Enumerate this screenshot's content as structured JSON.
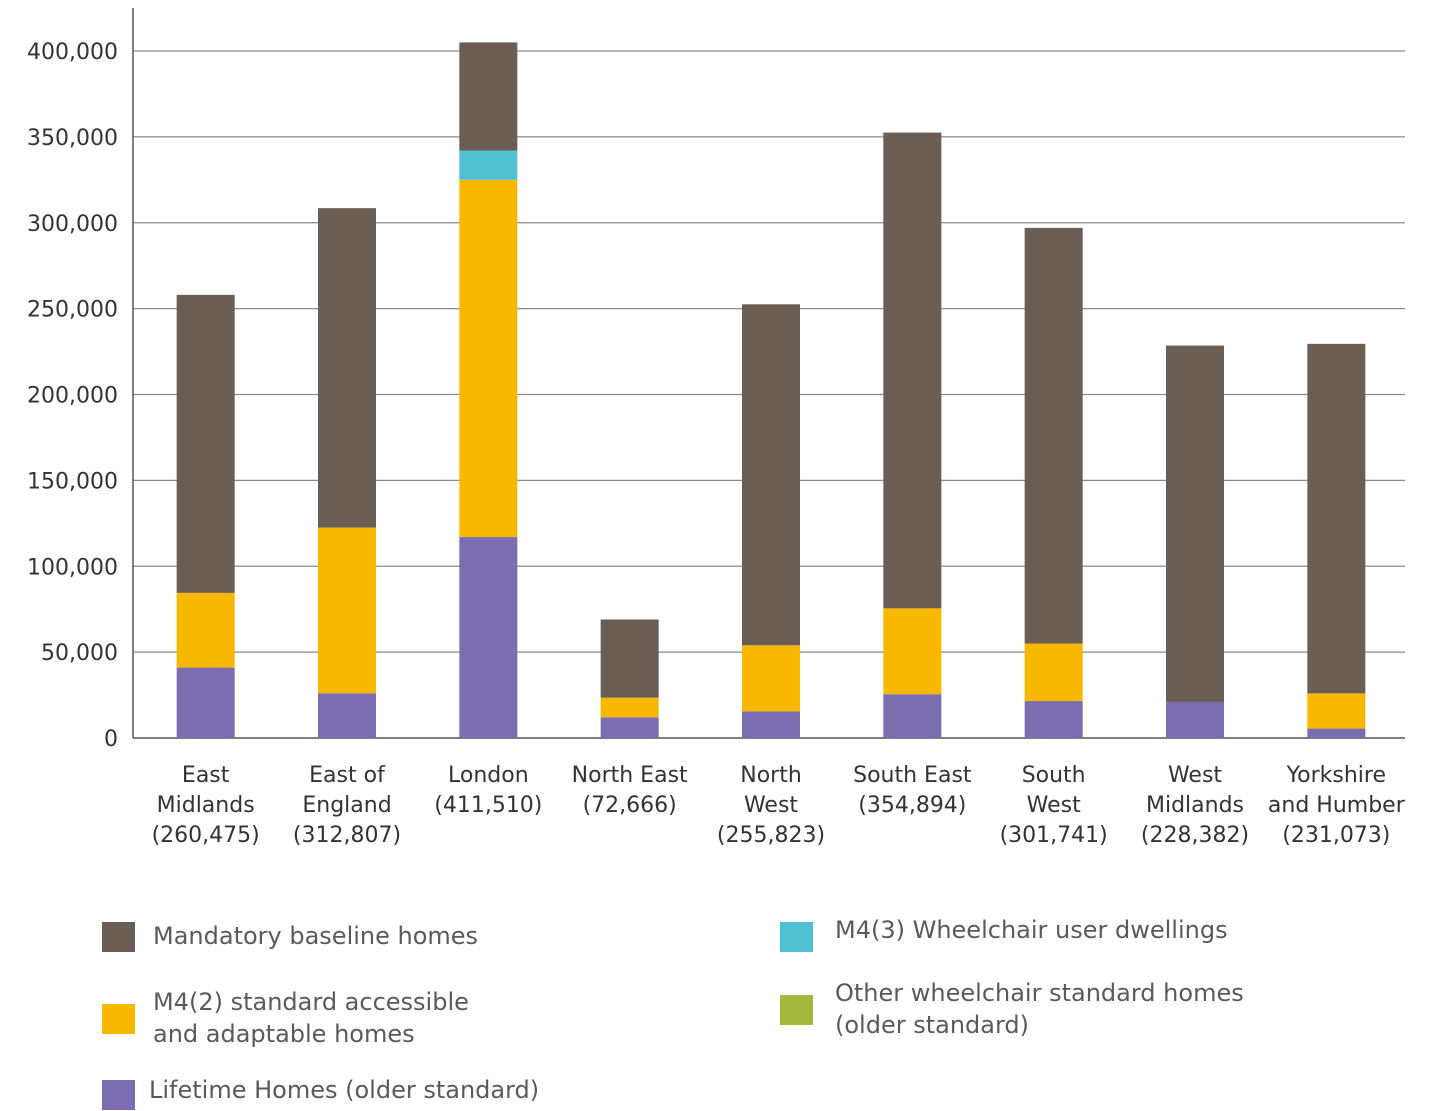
{
  "chart_data": {
    "type": "bar",
    "stacked": true,
    "categories": [
      "East\nMidlands\n(260,475)",
      "East of\nEngland\n(312,807)",
      "London\n(411,510)",
      "North East\n(72,666)",
      "North\nWest\n(255,823)",
      "South East\n(354,894)",
      "South\nWest\n(301,741)",
      "West\nMidlands\n(228,382)",
      "Yorkshire\nand Humber\n(231,073)"
    ],
    "series": [
      {
        "name": "Lifetime Homes (older standard)",
        "color": "#7a6db0",
        "values": [
          41000,
          26000,
          117000,
          12000,
          15500,
          25500,
          21500,
          21000,
          5500
        ]
      },
      {
        "name": "M4(2) standard accessible\nand adaptable homes",
        "color": "#f9b800",
        "values": [
          43500,
          96500,
          208000,
          11500,
          38500,
          50000,
          33500,
          0,
          20500
        ]
      },
      {
        "name": "Other wheelchair standard homes\n(older standard)",
        "color": "#a5b83e",
        "values": [
          0,
          0,
          0,
          0,
          0,
          0,
          0,
          0,
          0
        ]
      },
      {
        "name": "M4(3) Wheelchair user dwellings",
        "color": "#4fc1d2",
        "values": [
          0,
          0,
          17000,
          0,
          0,
          0,
          0,
          0,
          0
        ]
      },
      {
        "name": "Mandatory baseline homes",
        "color": "#6a5d53",
        "values": [
          173500,
          186000,
          63000,
          45500,
          198500,
          277000,
          242000,
          207500,
          203500
        ]
      }
    ],
    "yticks": [
      "0",
      "50,000",
      "100,000",
      "150,000",
      "200,000",
      "250,000",
      "300,000",
      "350,000",
      "400,000"
    ],
    "ylim": [
      0,
      425000
    ],
    "grid": true,
    "legend": [
      {
        "name": "Mandatory baseline homes",
        "color": "#6a5d53"
      },
      {
        "name": "M4(2) standard accessible\nand adaptable homes",
        "color": "#f9b800"
      },
      {
        "name": "Lifetime Homes (older standard)",
        "color": "#7a6db0"
      },
      {
        "name": "M4(3) Wheelchair user dwellings",
        "color": "#4fc1d2"
      },
      {
        "name": "Other wheelchair standard homes\n(older standard)",
        "color": "#a5b83e"
      }
    ],
    "legend_position": "bottom"
  }
}
